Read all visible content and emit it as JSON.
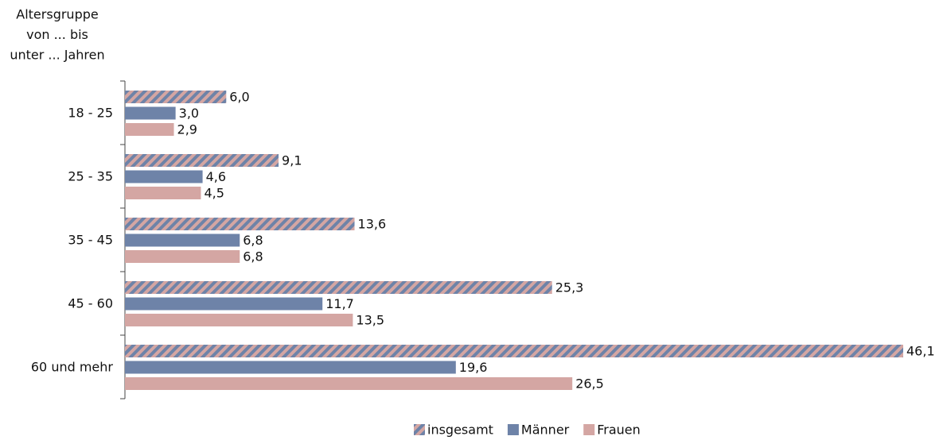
{
  "chart_data": {
    "type": "barh",
    "y_label": [
      "Altersgruppe",
      "von ... bis",
      "unter ... Jahren"
    ],
    "categories": [
      "18 - 25",
      "25 - 35",
      "35 - 45",
      "45 - 60",
      "60 und mehr"
    ],
    "series": [
      {
        "name": "insgesamt",
        "color": "#6e83a8",
        "hatch": "#d4a6a3",
        "values": [
          6.0,
          9.1,
          13.6,
          25.3,
          46.1
        ],
        "value_labels": [
          "6,0",
          "9,1",
          "13,6",
          "25,3",
          "46,1"
        ]
      },
      {
        "name": "Männer",
        "color": "#6e83a8",
        "values": [
          3.0,
          4.6,
          6.8,
          11.7,
          19.6
        ],
        "value_labels": [
          "3,0",
          "4,6",
          "6,8",
          "11,7",
          "19,6"
        ]
      },
      {
        "name": "Frauen",
        "color": "#d4a6a3",
        "values": [
          2.9,
          4.5,
          6.8,
          13.5,
          26.5
        ],
        "value_labels": [
          "2,9",
          "4,5",
          "6,8",
          "13,5",
          "26,5"
        ]
      }
    ],
    "legend": "bottom"
  }
}
